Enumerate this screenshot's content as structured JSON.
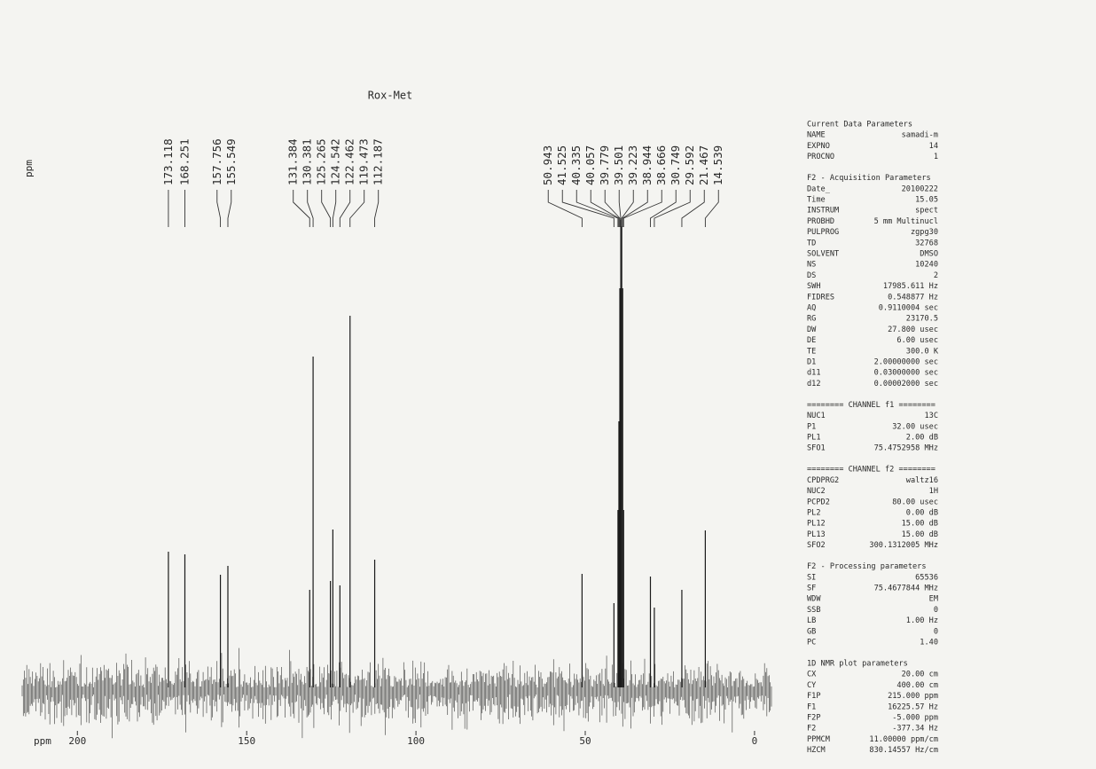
{
  "chart_data": {
    "type": "spectrum",
    "title": "Rox-Met",
    "x_label": "ppm",
    "y_label": "ppm",
    "x": [
      173.118,
      168.251,
      157.756,
      155.549,
      131.384,
      130.381,
      125.265,
      124.542,
      122.462,
      119.473,
      112.187,
      50.943,
      41.525,
      40.335,
      40.057,
      39.779,
      39.501,
      39.223,
      38.944,
      38.666,
      30.749,
      29.592,
      21.467,
      14.539
    ],
    "values": [
      153,
      150,
      127,
      137,
      110,
      373,
      120,
      178,
      115,
      419,
      144,
      128,
      95,
      200,
      300,
      450,
      527,
      520,
      450,
      200,
      125,
      90,
      110,
      177
    ],
    "color": "#1a1a1a",
    "xlim": [
      215,
      -5
    ],
    "xticks": [
      200,
      150,
      100,
      50,
      0
    ],
    "ylim": [
      0,
      540
    ]
  },
  "parameters": {
    "sections": [
      {
        "title": "Current Data Parameters",
        "rows": [
          [
            "NAME",
            "samadi-m"
          ],
          [
            "EXPNO",
            "14"
          ],
          [
            "PROCNO",
            "1"
          ]
        ]
      },
      {
        "title": "F2 - Acquisition Parameters",
        "rows": [
          [
            "Date_",
            "20100222"
          ],
          [
            "Time",
            "15.05"
          ],
          [
            "INSTRUM",
            "spect"
          ],
          [
            "PROBHD",
            "5 mm Multinucl"
          ],
          [
            "PULPROG",
            "zgpg30"
          ],
          [
            "TD",
            "32768"
          ],
          [
            "SOLVENT",
            "DMSO"
          ],
          [
            "NS",
            "10240"
          ],
          [
            "DS",
            "2"
          ],
          [
            "SWH",
            "17985.611 Hz"
          ],
          [
            "FIDRES",
            "0.548877 Hz"
          ],
          [
            "AQ",
            "0.9110004 sec"
          ],
          [
            "RG",
            "23170.5"
          ],
          [
            "DW",
            "27.800 usec"
          ],
          [
            "DE",
            "6.00 usec"
          ],
          [
            "TE",
            "300.0 K"
          ],
          [
            "D1",
            "2.00000000 sec"
          ],
          [
            "d11",
            "0.03000000 sec"
          ],
          [
            "d12",
            "0.00002000 sec"
          ]
        ]
      },
      {
        "title": "======== CHANNEL f1 ========",
        "rows": [
          [
            "NUC1",
            "13C"
          ],
          [
            "P1",
            "32.00 usec"
          ],
          [
            "PL1",
            "2.00 dB"
          ],
          [
            "SFO1",
            "75.4752958 MHz"
          ]
        ]
      },
      {
        "title": "======== CHANNEL f2 ========",
        "rows": [
          [
            "CPDPRG2",
            "waltz16"
          ],
          [
            "NUC2",
            "1H"
          ],
          [
            "PCPD2",
            "80.00 usec"
          ],
          [
            "PL2",
            "0.00 dB"
          ],
          [
            "PL12",
            "15.00 dB"
          ],
          [
            "PL13",
            "15.00 dB"
          ],
          [
            "SFO2",
            "300.1312005 MHz"
          ]
        ]
      },
      {
        "title": "F2 - Processing parameters",
        "rows": [
          [
            "SI",
            "65536"
          ],
          [
            "SF",
            "75.4677844 MHz"
          ],
          [
            "WDW",
            "EM"
          ],
          [
            "SSB",
            "0"
          ],
          [
            "LB",
            "1.00 Hz"
          ],
          [
            "GB",
            "0"
          ],
          [
            "PC",
            "1.40"
          ]
        ]
      },
      {
        "title": "1D NMR plot parameters",
        "rows": [
          [
            "CX",
            "20.00 cm"
          ],
          [
            "CY",
            "400.00 cm"
          ],
          [
            "F1P",
            "215.000 ppm"
          ],
          [
            "F1",
            "16225.57 Hz"
          ],
          [
            "F2P",
            "-5.000 ppm"
          ],
          [
            "F2",
            "-377.34 Hz"
          ],
          [
            "PPMCM",
            "11.00000 ppm/cm"
          ],
          [
            "HZCM",
            "830.14557 Hz/cm"
          ]
        ]
      }
    ]
  }
}
